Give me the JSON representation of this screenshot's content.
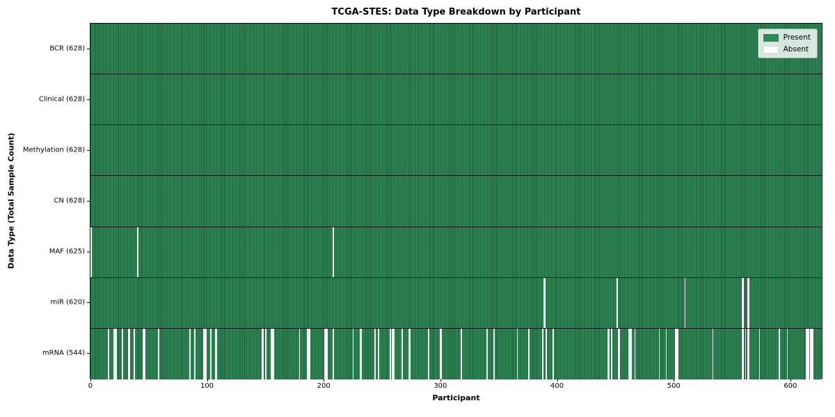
{
  "chart_data": {
    "type": "heatmap",
    "title": "TCGA-STES: Data Type Breakdown by Participant",
    "xlabel": "Participant",
    "ylabel": "Data Type (Total Sample Count)",
    "n_participants": 628,
    "xlim": [
      -0.5,
      627.5
    ],
    "x_ticks": [
      0,
      100,
      200,
      300,
      400,
      500,
      600
    ],
    "grid": false,
    "legend_position": "upper right",
    "colors": {
      "present": "#2e8b57",
      "present_edge": "#1f5737",
      "absent": "#f7f7f7",
      "frame": "#000000"
    },
    "legend": [
      {
        "label": "Present",
        "color": "#2e8b57"
      },
      {
        "label": "Absent",
        "color": "#ffffff"
      }
    ],
    "rows": [
      {
        "label": "BCR (628)",
        "data_type": "BCR",
        "present_count": 628,
        "absent_participants": []
      },
      {
        "label": "Clinical (628)",
        "data_type": "Clinical",
        "present_count": 628,
        "absent_participants": []
      },
      {
        "label": "Methylation (628)",
        "data_type": "Methylation",
        "present_count": 628,
        "absent_participants": []
      },
      {
        "label": "CN (628)",
        "data_type": "CN",
        "present_count": 628,
        "absent_participants": []
      },
      {
        "label": "MAF (625)",
        "data_type": "MAF",
        "present_count": 625,
        "absent_participants": [
          0,
          40,
          208
        ]
      },
      {
        "label": "miR (620)",
        "data_type": "miR",
        "present_count": 620,
        "absent_participants": [
          389,
          390,
          452,
          510,
          559,
          560,
          564,
          565
        ]
      },
      {
        "label": "mRNA (544)",
        "data_type": "mRNA",
        "present_count": 544,
        "absent_participants": [
          15,
          20,
          21,
          22,
          27,
          32,
          33,
          37,
          45,
          46,
          58,
          85,
          89,
          97,
          98,
          99,
          103,
          107,
          108,
          147,
          148,
          150,
          155,
          156,
          157,
          179,
          186,
          187,
          188,
          201,
          202,
          203,
          208,
          225,
          231,
          232,
          244,
          247,
          257,
          259,
          260,
          267,
          273,
          274,
          290,
          300,
          301,
          318,
          340,
          346,
          366,
          376,
          388,
          391,
          397,
          444,
          445,
          447,
          453,
          454,
          462,
          463,
          464,
          467,
          488,
          494,
          502,
          503,
          504,
          534,
          559,
          560,
          562,
          564,
          565,
          574,
          591,
          598,
          614,
          615,
          616,
          618,
          619,
          620
        ]
      }
    ]
  }
}
